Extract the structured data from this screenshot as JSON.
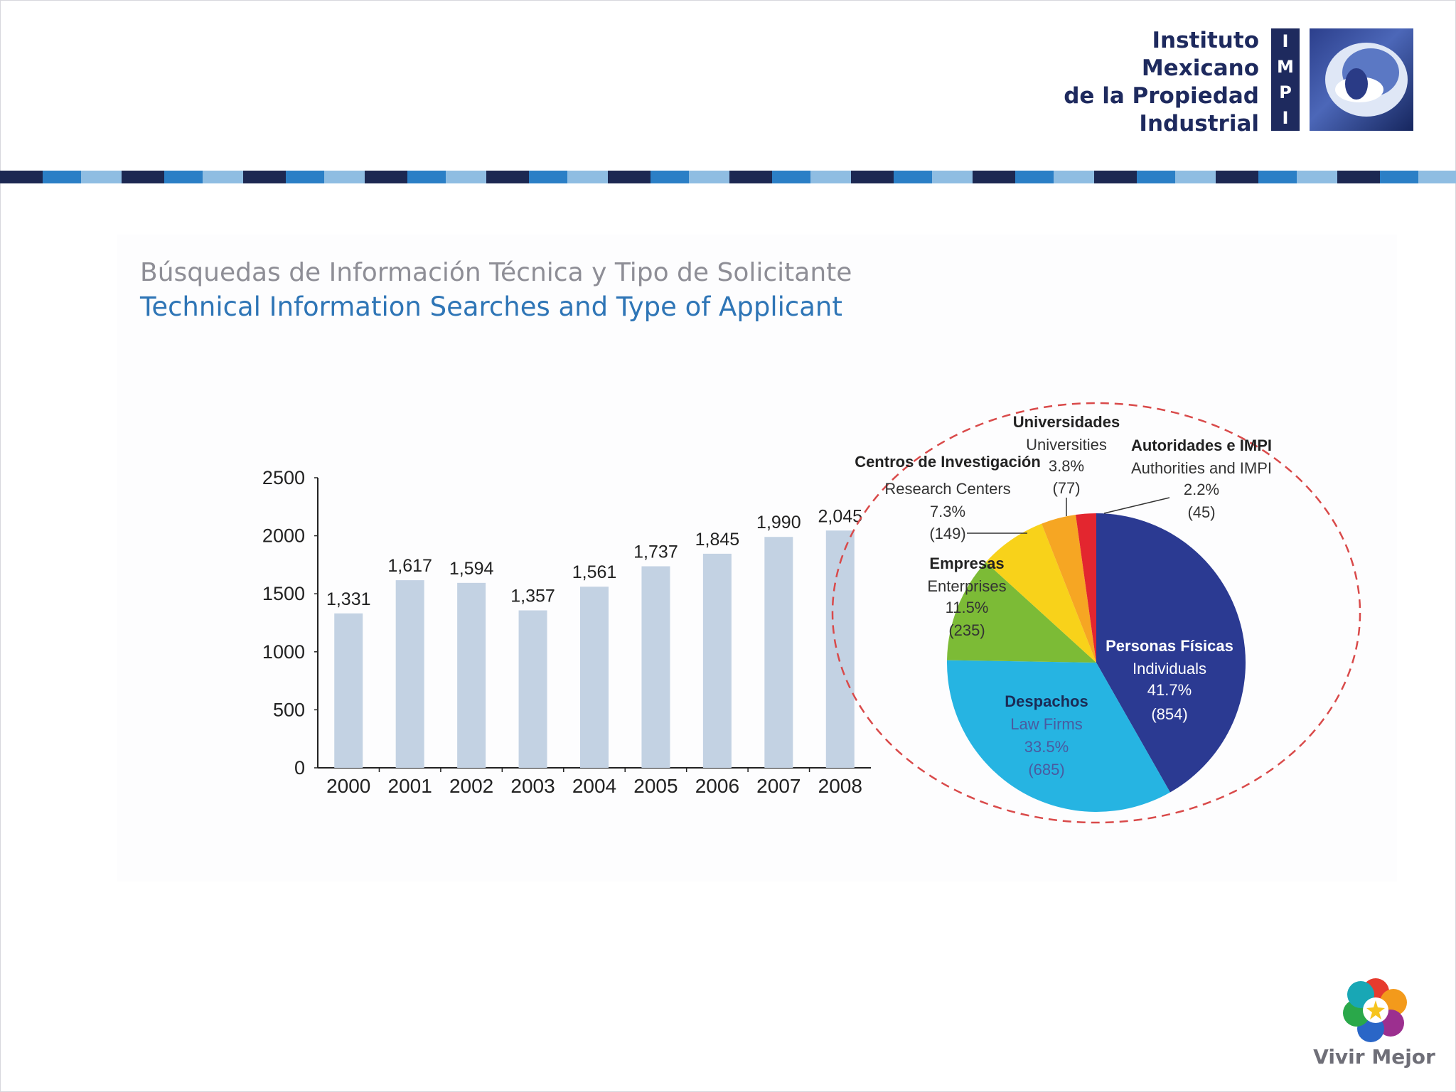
{
  "header": {
    "logo_lines": [
      "Instituto",
      "Mexicano",
      "de la Propiedad",
      "Industrial"
    ],
    "logo_letters": [
      "I",
      "M",
      "P",
      "I"
    ]
  },
  "slide": {
    "title_es": "Búsquedas de Información Técnica y Tipo de Solicitante",
    "title_en": "Technical Information Searches and Type of Applicant"
  },
  "footer": {
    "brand": "Vivir Mejor"
  },
  "colors": {
    "bar": "#c3d2e3",
    "stripe_dark": "#1c2852",
    "stripe_mid": "#2b7fc6",
    "stripe_light": "#8fbde2",
    "title_es": "#8e8e96",
    "title_en": "#2e75b6",
    "highlight_ring": "#d94a4a"
  },
  "chart_data": [
    {
      "type": "bar",
      "categories": [
        "2000",
        "2001",
        "2002",
        "2003",
        "2004",
        "2005",
        "2006",
        "2007",
        "2008"
      ],
      "values": [
        1331,
        1617,
        1594,
        1357,
        1561,
        1737,
        1845,
        1990,
        2045
      ],
      "data_labels": [
        "1,331",
        "1,617",
        "1,594",
        "1,357",
        "1,561",
        "1,737",
        "1,845",
        "1,990",
        "2,045"
      ],
      "y_ticks": [
        0,
        500,
        1000,
        1500,
        2000,
        2500
      ],
      "ylim": [
        0,
        2500
      ],
      "title": "",
      "xlabel": "",
      "ylabel": ""
    },
    {
      "type": "pie",
      "slices": [
        {
          "label_es": "Personas Físicas",
          "label_en": "Individuals",
          "percent": "41.7%",
          "count": "(854)",
          "value": 854,
          "color": "#2b3a92"
        },
        {
          "label_es": "Despachos",
          "label_en": "Law Firms",
          "percent": "33.5%",
          "count": "(685)",
          "value": 685,
          "color": "#26b4e2"
        },
        {
          "label_es": "Empresas",
          "label_en": "Enterprises",
          "percent": "11.5%",
          "count": "(235)",
          "value": 235,
          "color": "#7cbb36"
        },
        {
          "label_es": "Centros de Investigación",
          "label_en": "Research Centers",
          "percent": "7.3%",
          "count": "(149)",
          "value": 149,
          "color": "#f8d21a"
        },
        {
          "label_es": "Universidades",
          "label_en": "Universities",
          "percent": "3.8%",
          "count": "(77)",
          "value": 77,
          "color": "#f6a623"
        },
        {
          "label_es": "Autoridades e IMPI",
          "label_en": "Authorities and IMPI",
          "percent": "2.2%",
          "count": "(45)",
          "value": 45,
          "color": "#e3262f"
        }
      ]
    }
  ]
}
